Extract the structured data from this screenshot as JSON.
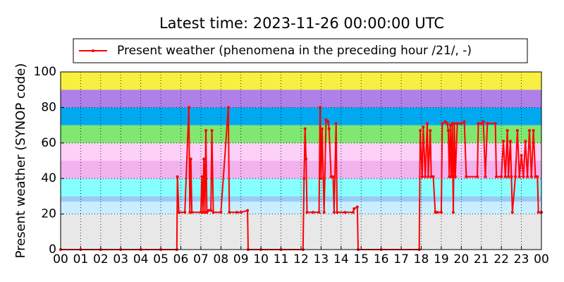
{
  "chart_data": {
    "type": "line",
    "title": "Latest time: 2023-11-26 00:00:00 UTC",
    "y_label": "Present weather (SYNOP code)",
    "xlim": [
      0,
      24
    ],
    "ylim": [
      0,
      100
    ],
    "xticks": [
      {
        "value": 0,
        "label": "00"
      },
      {
        "value": 1,
        "label": "01"
      },
      {
        "value": 2,
        "label": "02"
      },
      {
        "value": 3,
        "label": "03"
      },
      {
        "value": 4,
        "label": "04"
      },
      {
        "value": 5,
        "label": "05"
      },
      {
        "value": 6,
        "label": "06"
      },
      {
        "value": 7,
        "label": "07"
      },
      {
        "value": 8,
        "label": "08"
      },
      {
        "value": 9,
        "label": "09"
      },
      {
        "value": 10,
        "label": "10"
      },
      {
        "value": 11,
        "label": "11"
      },
      {
        "value": 12,
        "label": "12"
      },
      {
        "value": 13,
        "label": "13"
      },
      {
        "value": 14,
        "label": "14"
      },
      {
        "value": 15,
        "label": "15"
      },
      {
        "value": 16,
        "label": "16"
      },
      {
        "value": 17,
        "label": "17"
      },
      {
        "value": 18,
        "label": "18"
      },
      {
        "value": 19,
        "label": "19"
      },
      {
        "value": 20,
        "label": "20"
      },
      {
        "value": 21,
        "label": "21"
      },
      {
        "value": 22,
        "label": "22"
      },
      {
        "value": 23,
        "label": "23"
      },
      {
        "value": 24,
        "label": "00"
      }
    ],
    "yticks": [
      0,
      20,
      40,
      60,
      80,
      100
    ],
    "grid": true,
    "bands": [
      {
        "range": [
          0,
          20
        ],
        "color": "#e8e8e8"
      },
      {
        "range": [
          20,
          27
        ],
        "color": "#c8eeff"
      },
      {
        "range": [
          27,
          30
        ],
        "color": "#99ccf4"
      },
      {
        "range": [
          30,
          40
        ],
        "color": "#88ffff"
      },
      {
        "range": [
          40,
          50
        ],
        "color": "#f2b2ee"
      },
      {
        "range": [
          50,
          60
        ],
        "color": "#fdd0f8"
      },
      {
        "range": [
          60,
          70
        ],
        "color": "#80e870"
      },
      {
        "range": [
          70,
          80
        ],
        "color": "#00a8f0"
      },
      {
        "range": [
          80,
          90
        ],
        "color": "#b080e8"
      },
      {
        "range": [
          90,
          100
        ],
        "color": "#f8f040"
      }
    ],
    "series": [
      {
        "name": "Present weather (phenomena in the preceding hour /21/, -)",
        "color": "#ff0000",
        "x": [
          0,
          1,
          2,
          3,
          4,
          5,
          5.8,
          5.83,
          5.9,
          6.2,
          6.4,
          6.45,
          6.5,
          6.55,
          7.0,
          7.05,
          7.1,
          7.15,
          7.2,
          7.25,
          7.3,
          7.4,
          7.5,
          7.55,
          7.62,
          8.0,
          8.37,
          8.42,
          8.8,
          9.0,
          9.33,
          9.36,
          10,
          11,
          12.1,
          12.15,
          12.2,
          12.25,
          12.3,
          12.6,
          12.9,
          12.95,
          13.0,
          13.05,
          13.15,
          13.25,
          13.35,
          13.4,
          13.5,
          13.6,
          13.65,
          13.75,
          13.8,
          14.2,
          14.6,
          14.65,
          14.81,
          14.85,
          16,
          17.9,
          17.95,
          18.05,
          18.1,
          18.2,
          18.3,
          18.35,
          18.45,
          18.5,
          18.6,
          18.7,
          18.8,
          19.0,
          19.05,
          19.2,
          19.3,
          19.35,
          19.4,
          19.45,
          19.5,
          19.55,
          19.6,
          19.65,
          19.7,
          19.8,
          20.0,
          20.15,
          20.25,
          20.8,
          20.85,
          21.0,
          21.1,
          21.2,
          21.3,
          21.7,
          21.75,
          22.0,
          22.1,
          22.2,
          22.3,
          22.35,
          22.45,
          22.5,
          22.55,
          22.7,
          22.8,
          22.9,
          23.0,
          23.1,
          23.2,
          23.3,
          23.4,
          23.5,
          23.6,
          23.7,
          23.8,
          23.85,
          24.0
        ],
        "values": [
          0,
          0,
          0,
          0,
          0,
          0,
          0,
          41,
          21,
          21,
          80,
          21,
          51,
          21,
          21,
          41,
          21,
          51,
          21,
          67,
          21,
          22,
          22,
          67,
          21,
          21,
          80,
          21,
          21,
          21,
          22,
          0,
          0,
          0,
          0,
          40,
          68,
          51,
          21,
          21,
          21,
          80,
          40,
          68,
          21,
          73,
          72,
          68,
          41,
          41,
          21,
          71,
          21,
          21,
          21,
          23,
          24,
          0,
          0,
          0,
          67,
          41,
          69,
          41,
          71,
          41,
          67,
          41,
          41,
          21,
          21,
          21,
          71,
          72,
          71,
          67,
          41,
          70,
          41,
          71,
          21,
          71,
          41,
          71,
          71,
          72,
          41,
          41,
          71,
          71,
          72,
          41,
          71,
          71,
          41,
          41,
          61,
          41,
          67,
          41,
          61,
          41,
          21,
          41,
          67,
          41,
          53,
          41,
          61,
          41,
          67,
          41,
          67,
          41,
          41,
          21,
          21
        ]
      }
    ],
    "legend": "upper center"
  }
}
